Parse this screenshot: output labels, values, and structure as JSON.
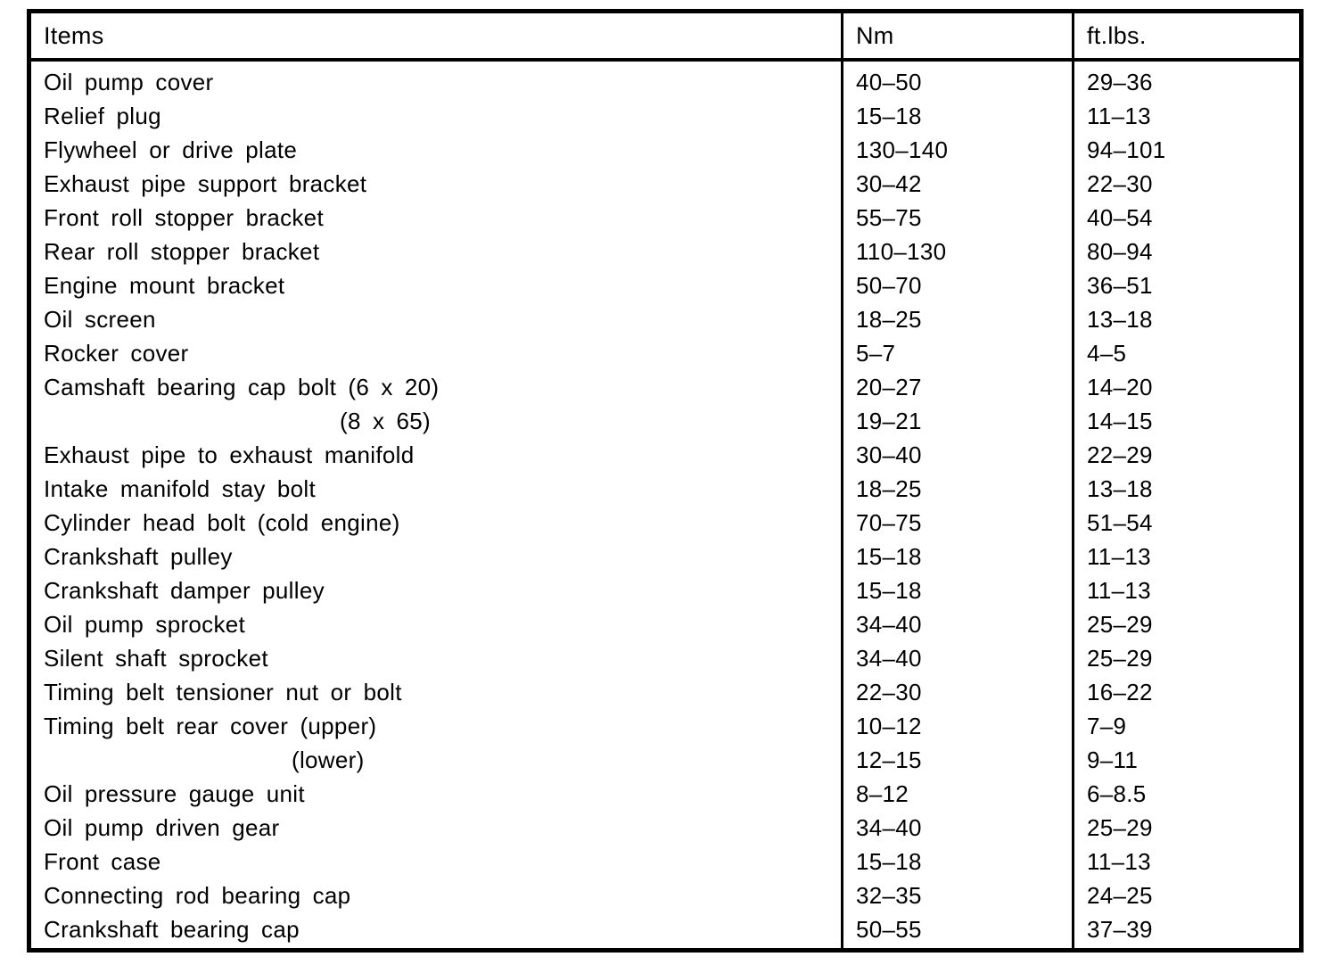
{
  "table": {
    "columns": [
      "Items",
      "Nm",
      "ft.lbs."
    ],
    "rows": [
      {
        "item": "Oil pump cover",
        "nm": "40–50",
        "ftlbs": "29–36",
        "indent": 0
      },
      {
        "item": "Relief plug",
        "nm": "15–18",
        "ftlbs": "11–13",
        "indent": 0
      },
      {
        "item": "Flywheel or drive plate",
        "nm": "130–140",
        "ftlbs": "94–101",
        "indent": 0
      },
      {
        "item": "Exhaust pipe support bracket",
        "nm": "30–42",
        "ftlbs": "22–30",
        "indent": 0
      },
      {
        "item": "Front roll stopper bracket",
        "nm": "55–75",
        "ftlbs": "40–54",
        "indent": 0
      },
      {
        "item": "Rear roll stopper bracket",
        "nm": "110–130",
        "ftlbs": "80–94",
        "indent": 0
      },
      {
        "item": "Engine mount bracket",
        "nm": "50–70",
        "ftlbs": "36–51",
        "indent": 0
      },
      {
        "item": "Oil screen",
        "nm": "18–25",
        "ftlbs": "13–18",
        "indent": 0
      },
      {
        "item": "Rocker cover",
        "nm": "5–7",
        "ftlbs": "4–5",
        "indent": 0
      },
      {
        "item": "Camshaft bearing cap bolt (6 x 20)",
        "nm": "20–27",
        "ftlbs": "14–20",
        "indent": 0
      },
      {
        "item": "(8 x 65)",
        "nm": "19–21",
        "ftlbs": "14–15",
        "indent": 332
      },
      {
        "item": "Exhaust pipe to exhaust manifold",
        "nm": "30–40",
        "ftlbs": "22–29",
        "indent": 0
      },
      {
        "item": "Intake manifold stay bolt",
        "nm": "18–25",
        "ftlbs": "13–18",
        "indent": 0
      },
      {
        "item": "Cylinder head bolt (cold engine)",
        "nm": "70–75",
        "ftlbs": "51–54",
        "indent": 0
      },
      {
        "item": "Crankshaft pulley",
        "nm": "15–18",
        "ftlbs": "11–13",
        "indent": 0
      },
      {
        "item": "Crankshaft damper pulley",
        "nm": "15–18",
        "ftlbs": "11–13",
        "indent": 0
      },
      {
        "item": "Oil pump sprocket",
        "nm": "34–40",
        "ftlbs": "25–29",
        "indent": 0
      },
      {
        "item": "Silent shaft sprocket",
        "nm": "34–40",
        "ftlbs": "25–29",
        "indent": 0
      },
      {
        "item": "Timing belt tensioner nut or bolt",
        "nm": "22–30",
        "ftlbs": "16–22",
        "indent": 0
      },
      {
        "item": "Timing belt rear cover (upper)",
        "nm": "10–12",
        "ftlbs": "7–9",
        "indent": 0
      },
      {
        "item": "(lower)",
        "nm": "12–15",
        "ftlbs": "9–11",
        "indent": 278
      },
      {
        "item": "Oil pressure gauge unit",
        "nm": "8–12",
        "ftlbs": "6–8.5",
        "indent": 0
      },
      {
        "item": "Oil pump driven gear",
        "nm": "34–40",
        "ftlbs": "25–29",
        "indent": 0
      },
      {
        "item": "Front case",
        "nm": "15–18",
        "ftlbs": "11–13",
        "indent": 0
      },
      {
        "item": "Connecting rod bearing cap",
        "nm": "32–35",
        "ftlbs": "24–25",
        "indent": 0
      },
      {
        "item": "Crankshaft bearing cap",
        "nm": "50–55",
        "ftlbs": "37–39",
        "indent": 0
      }
    ]
  }
}
